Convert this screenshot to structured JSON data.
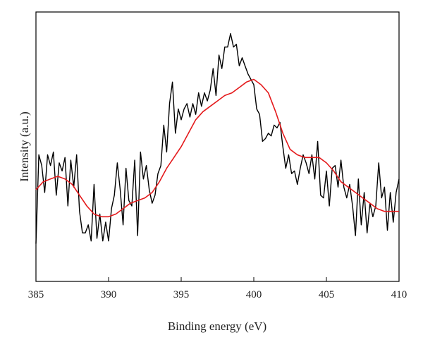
{
  "chart_data": {
    "type": "line",
    "title": "",
    "xlabel": "Binding energy (eV)",
    "ylabel": "Intensity (a.u.)",
    "xlim": [
      385,
      410
    ],
    "ylim": [
      0,
      1
    ],
    "xticks": [
      385,
      390,
      395,
      400,
      405,
      410
    ],
    "xtick_labels": [
      "385",
      "390",
      "395",
      "400",
      "405",
      "410"
    ],
    "yticks": [],
    "grid": false,
    "legend": "none",
    "series": [
      {
        "color": "#000000",
        "style": "noisy raw spectrum",
        "x": [
          385.0,
          385.2,
          385.4,
          385.6,
          385.8,
          386.0,
          386.2,
          386.4,
          386.6,
          386.8,
          387.0,
          387.2,
          387.4,
          387.6,
          387.8,
          388.0,
          388.2,
          388.4,
          388.6,
          388.8,
          389.0,
          389.2,
          389.4,
          389.6,
          389.8,
          390.0,
          390.2,
          390.4,
          390.6,
          390.8,
          391.0,
          391.2,
          391.4,
          391.6,
          391.8,
          392.0,
          392.2,
          392.4,
          392.6,
          392.8,
          393.0,
          393.2,
          393.4,
          393.6,
          393.8,
          394.0,
          394.2,
          394.4,
          394.6,
          394.8,
          395.0,
          395.2,
          395.4,
          395.6,
          395.8,
          396.0,
          396.2,
          396.4,
          396.6,
          396.8,
          397.0,
          397.2,
          397.4,
          397.6,
          397.8,
          398.0,
          398.2,
          398.4,
          398.6,
          398.8,
          399.0,
          399.2,
          399.4,
          399.6,
          399.8,
          400.0,
          400.2,
          400.4,
          400.6,
          400.8,
          401.0,
          401.2,
          401.4,
          401.6,
          401.8,
          402.0,
          402.2,
          402.4,
          402.6,
          402.8,
          403.0,
          403.2,
          403.4,
          403.6,
          403.8,
          404.0,
          404.2,
          404.4,
          404.6,
          404.8,
          405.0,
          405.2,
          405.4,
          405.6,
          405.8,
          406.0,
          406.2,
          406.4,
          406.6,
          406.8,
          407.0,
          407.2,
          407.4,
          407.6,
          407.8,
          408.0,
          408.2,
          408.4,
          408.6,
          408.8,
          409.0,
          409.2,
          409.4,
          409.6,
          409.8,
          410.0
        ],
        "y": [
          0.14,
          0.47,
          0.43,
          0.33,
          0.47,
          0.43,
          0.48,
          0.32,
          0.44,
          0.41,
          0.46,
          0.28,
          0.45,
          0.35,
          0.47,
          0.26,
          0.18,
          0.18,
          0.21,
          0.15,
          0.36,
          0.16,
          0.25,
          0.15,
          0.22,
          0.15,
          0.27,
          0.32,
          0.44,
          0.34,
          0.21,
          0.42,
          0.3,
          0.28,
          0.45,
          0.17,
          0.48,
          0.38,
          0.43,
          0.34,
          0.29,
          0.32,
          0.4,
          0.43,
          0.58,
          0.48,
          0.66,
          0.74,
          0.55,
          0.64,
          0.6,
          0.64,
          0.66,
          0.61,
          0.66,
          0.62,
          0.7,
          0.65,
          0.7,
          0.67,
          0.71,
          0.79,
          0.69,
          0.84,
          0.79,
          0.87,
          0.87,
          0.92,
          0.87,
          0.88,
          0.8,
          0.83,
          0.8,
          0.77,
          0.75,
          0.73,
          0.64,
          0.62,
          0.52,
          0.53,
          0.55,
          0.54,
          0.58,
          0.57,
          0.59,
          0.5,
          0.42,
          0.47,
          0.4,
          0.41,
          0.36,
          0.42,
          0.47,
          0.44,
          0.4,
          0.47,
          0.38,
          0.52,
          0.32,
          0.31,
          0.41,
          0.28,
          0.42,
          0.43,
          0.35,
          0.45,
          0.35,
          0.31,
          0.36,
          0.28,
          0.17,
          0.38,
          0.21,
          0.33,
          0.18,
          0.29,
          0.24,
          0.28,
          0.44,
          0.31,
          0.35,
          0.19,
          0.33,
          0.22,
          0.33,
          0.38
        ]
      },
      {
        "color": "#e41a1c",
        "style": "smoothed fit",
        "x": [
          385.0,
          385.5,
          386.0,
          386.5,
          387.0,
          387.5,
          388.0,
          388.5,
          389.0,
          389.5,
          390.0,
          390.5,
          391.0,
          391.5,
          392.0,
          392.5,
          393.0,
          393.5,
          394.0,
          394.5,
          395.0,
          395.5,
          396.0,
          396.5,
          397.0,
          397.5,
          398.0,
          398.5,
          399.0,
          399.5,
          400.0,
          400.5,
          401.0,
          401.5,
          402.0,
          402.5,
          403.0,
          403.5,
          404.0,
          404.5,
          405.0,
          405.5,
          406.0,
          406.5,
          407.0,
          407.5,
          408.0,
          408.5,
          409.0,
          409.5,
          410.0
        ],
        "y": [
          0.34,
          0.37,
          0.38,
          0.39,
          0.38,
          0.36,
          0.32,
          0.28,
          0.25,
          0.24,
          0.24,
          0.25,
          0.27,
          0.29,
          0.3,
          0.31,
          0.33,
          0.37,
          0.42,
          0.46,
          0.5,
          0.55,
          0.6,
          0.63,
          0.65,
          0.67,
          0.69,
          0.7,
          0.72,
          0.74,
          0.75,
          0.73,
          0.7,
          0.63,
          0.55,
          0.49,
          0.47,
          0.46,
          0.46,
          0.46,
          0.44,
          0.41,
          0.37,
          0.35,
          0.33,
          0.31,
          0.29,
          0.27,
          0.26,
          0.26,
          0.26
        ]
      }
    ]
  }
}
